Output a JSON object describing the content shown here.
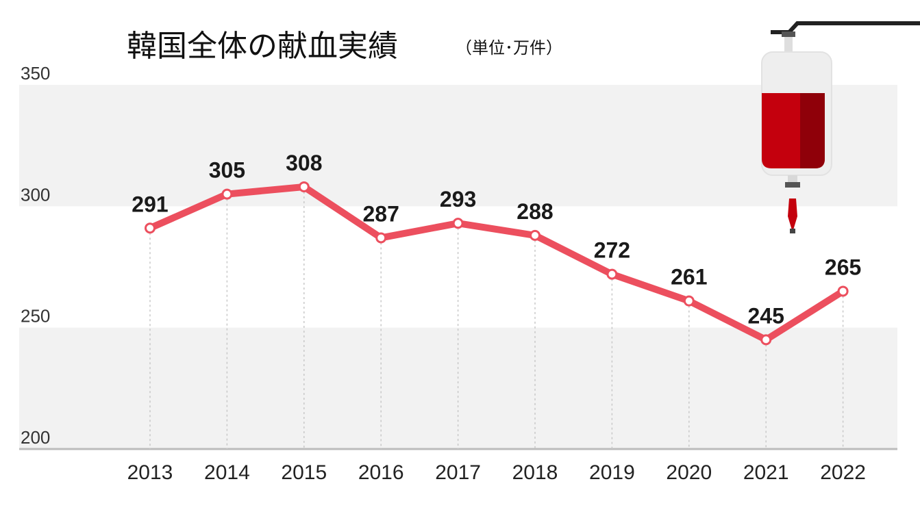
{
  "chart_data": {
    "type": "line",
    "title": "韓国全体の献血実績",
    "subtitle": "（単位･万件）",
    "xlabel": "",
    "ylabel": "",
    "x": [
      "2013",
      "2014",
      "2015",
      "2016",
      "2017",
      "2018",
      "2019",
      "2020",
      "2021",
      "2022"
    ],
    "series": [
      {
        "values": [
          291,
          305,
          308,
          287,
          293,
          288,
          272,
          261,
          245,
          265
        ]
      }
    ],
    "ylim": [
      200,
      350
    ],
    "yticks": [
      "200",
      "250",
      "300",
      "350"
    ],
    "grid": false,
    "line_color": "#ec4f5e",
    "band_color": "#f2f2f2",
    "legend": "none"
  },
  "illustration": {
    "icon": "blood-bag-icon",
    "bag_color": "#c4000d",
    "bag_shadow": "#8f0009"
  }
}
